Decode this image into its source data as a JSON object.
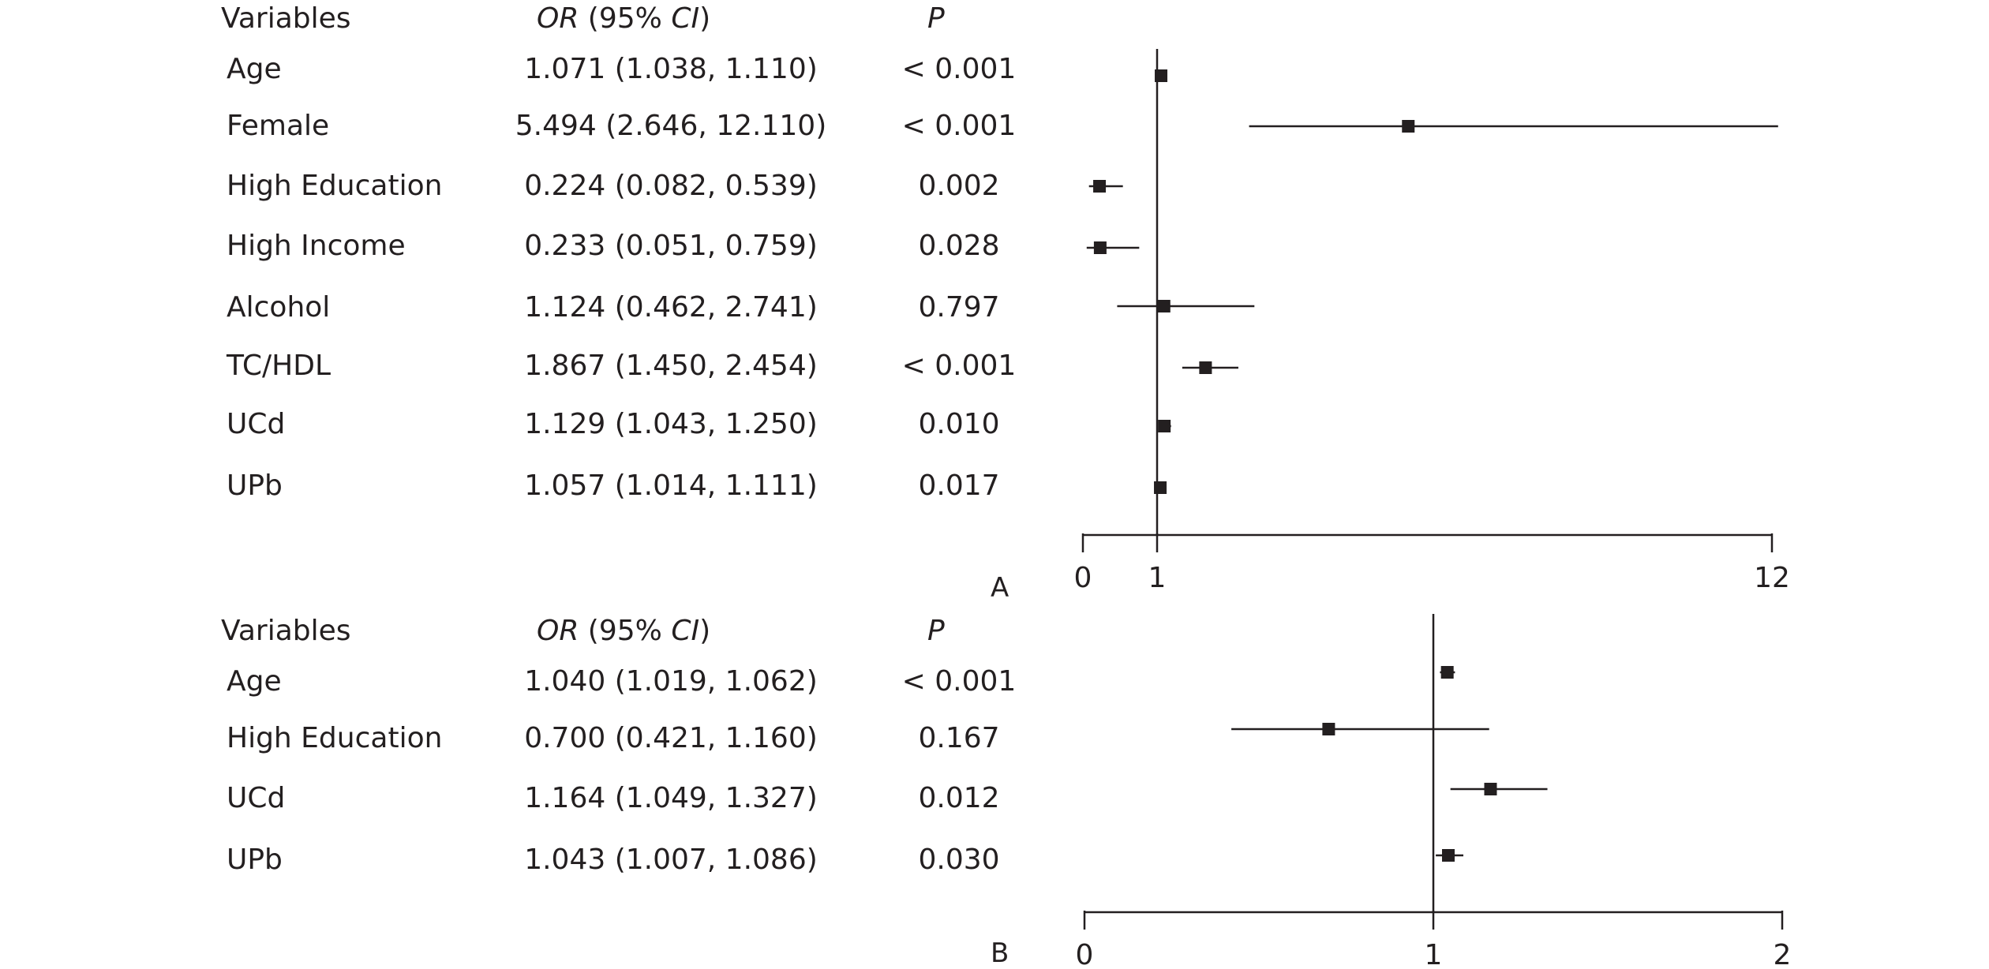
{
  "header": {
    "variables": "Variables",
    "or_prefix": "OR",
    "or_middle": " (95% ",
    "or_ci": "CI",
    "or_close": ")",
    "p": "P"
  },
  "chart_data": [
    {
      "type": "forest",
      "panel_label": "A",
      "xlim": [
        0,
        12
      ],
      "ref_line": 1,
      "xticks": [
        "0",
        "1",
        "12"
      ],
      "xtick_values": [
        0,
        1,
        12
      ],
      "rows": [
        {
          "variable": "Age",
          "or_text": "1.071 (1.038, 1.110)",
          "p": "< 0.001",
          "or": 1.071,
          "lo": 1.038,
          "hi": 1.11
        },
        {
          "variable": "Female",
          "or_text": "5.494 (2.646, 12.110)",
          "p": "< 0.001",
          "or": 5.494,
          "lo": 2.646,
          "hi": 12.11
        },
        {
          "variable": "High Education",
          "or_text": "0.224 (0.082, 0.539)",
          "p": "0.002",
          "or": 0.224,
          "lo": 0.082,
          "hi": 0.539
        },
        {
          "variable": "High Income",
          "or_text": "0.233 (0.051, 0.759)",
          "p": "0.028",
          "or": 0.233,
          "lo": 0.051,
          "hi": 0.759
        },
        {
          "variable": "Alcohol",
          "or_text": "1.124 (0.462, 2.741)",
          "p": "0.797",
          "or": 1.124,
          "lo": 0.462,
          "hi": 2.741
        },
        {
          "variable": "TC/HDL",
          "or_text": "1.867 (1.450, 2.454)",
          "p": "< 0.001",
          "or": 1.867,
          "lo": 1.45,
          "hi": 2.454
        },
        {
          "variable": "UCd",
          "or_text": "1.129 (1.043, 1.250)",
          "p": "0.010",
          "or": 1.129,
          "lo": 1.043,
          "hi": 1.25
        },
        {
          "variable": "UPb",
          "or_text": "1.057 (1.014, 1.111)",
          "p": "0.017",
          "or": 1.057,
          "lo": 1.014,
          "hi": 1.111
        }
      ]
    },
    {
      "type": "forest",
      "panel_label": "B",
      "xlim": [
        0,
        2
      ],
      "ref_line": 1,
      "xticks": [
        "0",
        "1",
        "2"
      ],
      "xtick_values": [
        0,
        1,
        2
      ],
      "rows": [
        {
          "variable": "Age",
          "or_text": "1.040 (1.019, 1.062)",
          "p": "< 0.001",
          "or": 1.04,
          "lo": 1.019,
          "hi": 1.062
        },
        {
          "variable": "High Education",
          "or_text": "0.700 (0.421, 1.160)",
          "p": "0.167",
          "or": 0.7,
          "lo": 0.421,
          "hi": 1.16
        },
        {
          "variable": "UCd",
          "or_text": "1.164 (1.049, 1.327)",
          "p": "0.012",
          "or": 1.164,
          "lo": 1.049,
          "hi": 1.327
        },
        {
          "variable": "UPb",
          "or_text": "1.043 (1.007, 1.086)",
          "p": "0.030",
          "or": 1.043,
          "lo": 1.007,
          "hi": 1.086
        }
      ]
    }
  ]
}
